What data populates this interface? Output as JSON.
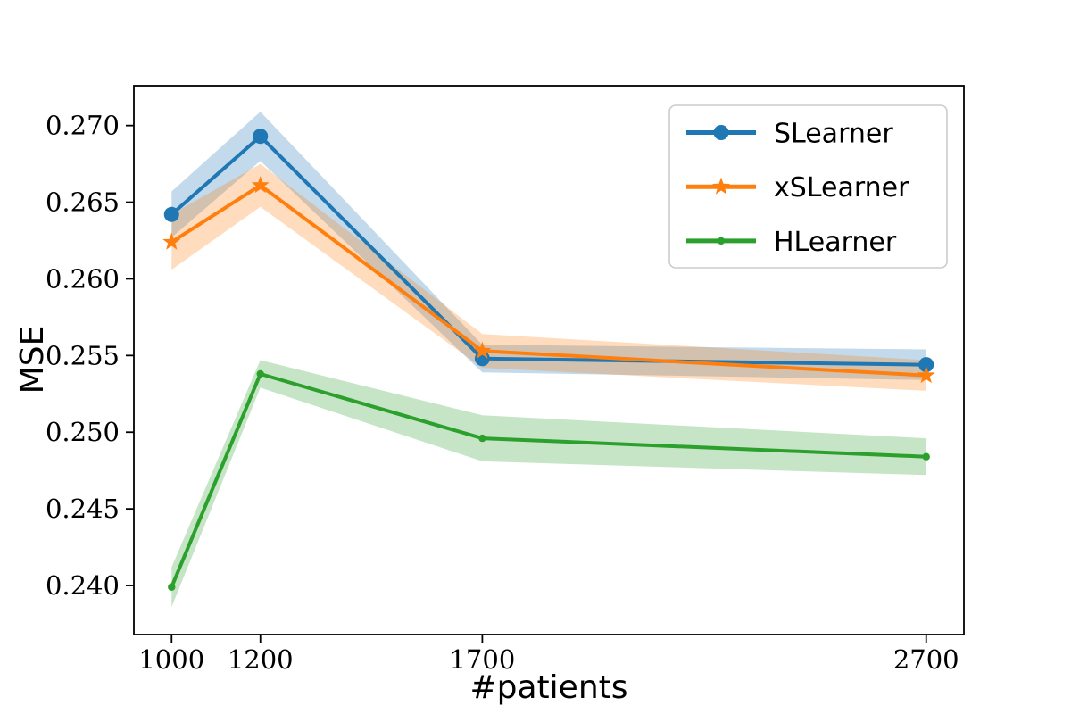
{
  "figure": {
    "background": "#ffffff",
    "axis_color": "#000000",
    "legend_border_color": "#cccccc"
  },
  "chart_data": {
    "type": "line",
    "title": "",
    "xlabel": "#patients",
    "ylabel": "MSE",
    "x": [
      1000,
      1200,
      1700,
      2700
    ],
    "xtick_labels": [
      "1000",
      "1200",
      "1700",
      "2700"
    ],
    "yticks": [
      0.24,
      0.245,
      0.25,
      0.255,
      0.26,
      0.265,
      0.27
    ],
    "xlim": [
      915,
      2785
    ],
    "ylim": [
      0.2368,
      0.2726
    ],
    "grid": false,
    "legend_position": "upper right",
    "band_opacity": 0.27,
    "series": [
      {
        "name": "SLearner",
        "color": "#1f77b4",
        "marker": "circle",
        "values": [
          0.2642,
          0.2693,
          0.2548,
          0.2544
        ],
        "band": [
          0.0015,
          0.0016,
          0.0009,
          0.001
        ]
      },
      {
        "name": "xSLearner",
        "color": "#ff7f0e",
        "marker": "star",
        "values": [
          0.2624,
          0.2661,
          0.2553,
          0.2537
        ],
        "band": [
          0.0018,
          0.0014,
          0.0011,
          0.001
        ]
      },
      {
        "name": "HLearner",
        "color": "#2ca02c",
        "marker": "dot",
        "values": [
          0.2399,
          0.2538,
          0.2496,
          0.2484
        ],
        "band": [
          0.0013,
          0.0009,
          0.0015,
          0.0012
        ]
      }
    ]
  }
}
